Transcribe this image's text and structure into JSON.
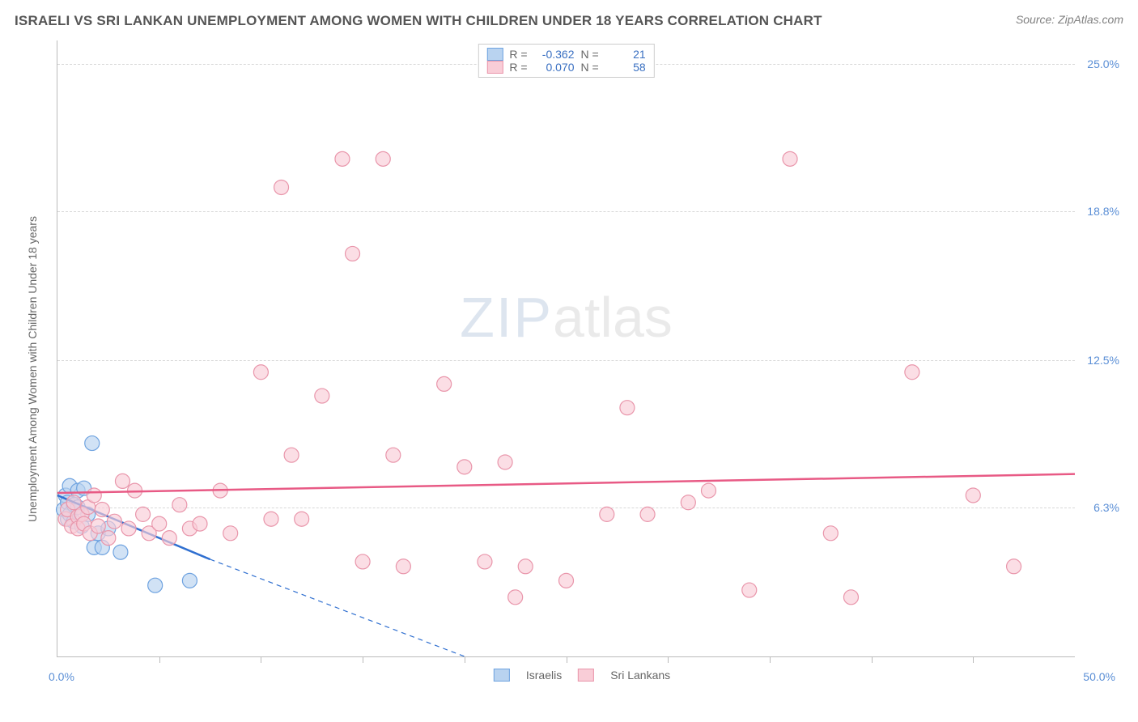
{
  "title": "ISRAELI VS SRI LANKAN UNEMPLOYMENT AMONG WOMEN WITH CHILDREN UNDER 18 YEARS CORRELATION CHART",
  "source": "Source: ZipAtlas.com",
  "watermark": {
    "part1": "ZIP",
    "part2": "atlas"
  },
  "chart": {
    "type": "scatter",
    "background_color": "#ffffff",
    "grid_color": "#d8d8d8",
    "border_color": "#bbbbbb",
    "x": {
      "min": 0,
      "max": 50,
      "min_label": "0.0%",
      "max_label": "50.0%",
      "ticks": [
        5,
        10,
        15,
        20,
        25,
        30,
        35,
        40,
        45
      ]
    },
    "y": {
      "min": 0,
      "max": 26,
      "gridlines": [
        6.3,
        12.5,
        18.8,
        25.0
      ],
      "labels": [
        "6.3%",
        "12.5%",
        "18.8%",
        "25.0%"
      ]
    },
    "ylabel": "Unemployment Among Women with Children Under 18 years",
    "series": [
      {
        "name": "Israelis",
        "fill": "#b9d3f0",
        "stroke": "#6fa3e0",
        "swatch_fill": "#b9d3f0",
        "swatch_stroke": "#6fa3e0",
        "marker_radius": 9,
        "marker_opacity": 0.65,
        "R": "-0.362",
        "N": "21",
        "trend": {
          "color": "#2f6fd0",
          "width": 2.5,
          "x1": 0,
          "y1": 6.8,
          "x2": 7.5,
          "y2": 4.1,
          "dash_x2": 20,
          "dash_y2": 0
        },
        "points": [
          [
            0.3,
            6.2
          ],
          [
            0.4,
            6.8
          ],
          [
            0.5,
            5.8
          ],
          [
            0.5,
            6.5
          ],
          [
            0.6,
            7.2
          ],
          [
            0.6,
            6.0
          ],
          [
            0.8,
            6.4
          ],
          [
            0.8,
            5.7
          ],
          [
            1.0,
            7.0
          ],
          [
            1.0,
            6.3
          ],
          [
            1.2,
            5.5
          ],
          [
            1.3,
            7.1
          ],
          [
            1.5,
            6.0
          ],
          [
            1.7,
            9.0
          ],
          [
            1.8,
            4.6
          ],
          [
            2.0,
            5.2
          ],
          [
            2.2,
            4.6
          ],
          [
            2.5,
            5.4
          ],
          [
            3.1,
            4.4
          ],
          [
            4.8,
            3.0
          ],
          [
            6.5,
            3.2
          ]
        ]
      },
      {
        "name": "Sri Lankans",
        "fill": "#f9cdd7",
        "stroke": "#e996ab",
        "swatch_fill": "#f9cdd7",
        "swatch_stroke": "#e996ab",
        "marker_radius": 9,
        "marker_opacity": 0.65,
        "R": "0.070",
        "N": "58",
        "trend": {
          "color": "#e85a85",
          "width": 2.5,
          "x1": 0,
          "y1": 6.9,
          "x2": 50,
          "y2": 7.7
        },
        "points": [
          [
            0.4,
            5.8
          ],
          [
            0.5,
            6.2
          ],
          [
            0.7,
            5.5
          ],
          [
            0.8,
            6.5
          ],
          [
            1.0,
            5.9
          ],
          [
            1.0,
            5.4
          ],
          [
            1.2,
            6.0
          ],
          [
            1.3,
            5.6
          ],
          [
            1.5,
            6.3
          ],
          [
            1.6,
            5.2
          ],
          [
            1.8,
            6.8
          ],
          [
            2.0,
            5.5
          ],
          [
            2.2,
            6.2
          ],
          [
            2.5,
            5.0
          ],
          [
            2.8,
            5.7
          ],
          [
            3.2,
            7.4
          ],
          [
            3.5,
            5.4
          ],
          [
            3.8,
            7.0
          ],
          [
            4.2,
            6.0
          ],
          [
            4.5,
            5.2
          ],
          [
            5.0,
            5.6
          ],
          [
            5.5,
            5.0
          ],
          [
            6.0,
            6.4
          ],
          [
            6.5,
            5.4
          ],
          [
            7.0,
            5.6
          ],
          [
            8.0,
            7.0
          ],
          [
            8.5,
            5.2
          ],
          [
            10.0,
            12.0
          ],
          [
            10.5,
            5.8
          ],
          [
            11.0,
            19.8
          ],
          [
            11.5,
            8.5
          ],
          [
            12.0,
            5.8
          ],
          [
            13.0,
            11.0
          ],
          [
            14.0,
            21.0
          ],
          [
            14.5,
            17.0
          ],
          [
            15.0,
            4.0
          ],
          [
            16.0,
            21.0
          ],
          [
            16.5,
            8.5
          ],
          [
            17.0,
            3.8
          ],
          [
            19.0,
            11.5
          ],
          [
            20.0,
            8.0
          ],
          [
            21.0,
            4.0
          ],
          [
            22.0,
            8.2
          ],
          [
            22.5,
            2.5
          ],
          [
            23.0,
            3.8
          ],
          [
            25.0,
            3.2
          ],
          [
            27.0,
            6.0
          ],
          [
            28.0,
            10.5
          ],
          [
            29.0,
            6.0
          ],
          [
            31.0,
            6.5
          ],
          [
            32.0,
            7.0
          ],
          [
            34.0,
            2.8
          ],
          [
            36.0,
            21.0
          ],
          [
            38.0,
            5.2
          ],
          [
            39.0,
            2.5
          ],
          [
            42.0,
            12.0
          ],
          [
            45.0,
            6.8
          ],
          [
            47.0,
            3.8
          ]
        ]
      }
    ],
    "legend_labels_top": {
      "R": "R =",
      "N": "N ="
    },
    "legend_bottom": [
      {
        "label": "Israelis",
        "fill": "#b9d3f0",
        "stroke": "#6fa3e0"
      },
      {
        "label": "Sri Lankans",
        "fill": "#f9cdd7",
        "stroke": "#e996ab"
      }
    ]
  }
}
